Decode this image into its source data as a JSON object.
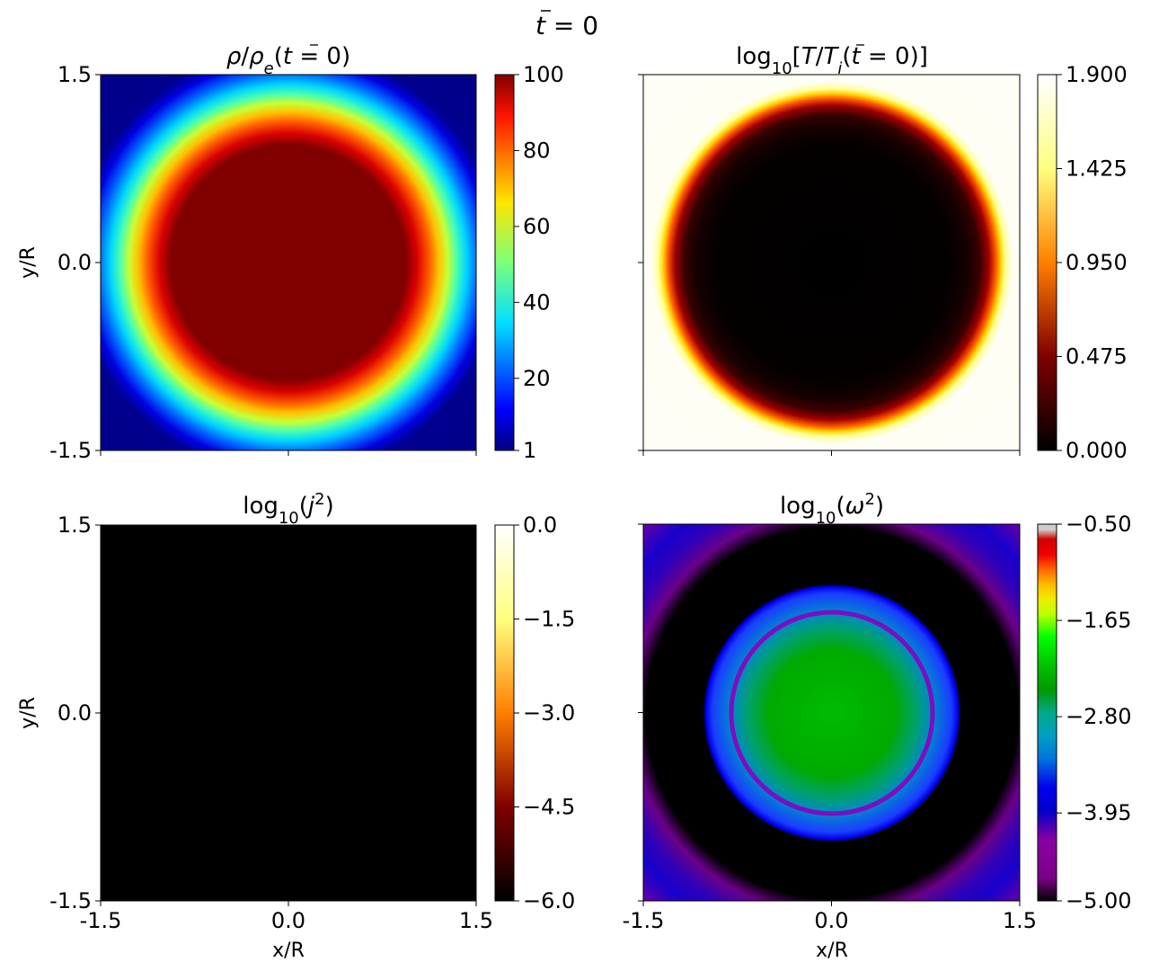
{
  "figure": {
    "suptitle": {
      "t": "t",
      "eq": " = 0"
    }
  },
  "chart_data": [
    {
      "type": "heatmap",
      "title": {
        "a": "ρ",
        "b": "/",
        "c": "ρ",
        "c_sub": "e",
        "d": "(",
        "e": "t",
        "f": " = 0)"
      },
      "xlabel": "",
      "ylabel": "y/R",
      "xlim": [
        -1.5,
        1.5
      ],
      "ylim": [
        -1.5,
        1.5
      ],
      "xticks": [
        -1.5,
        0.0,
        1.5
      ],
      "xtick_labels": [
        "",
        "",
        ""
      ],
      "yticks": [
        -1.5,
        0.0,
        1.5
      ],
      "ytick_labels": [
        "-1.5",
        "0.0",
        "1.5"
      ],
      "colormap": "jet",
      "colorbar": {
        "range": [
          1,
          100
        ],
        "ticks": [
          1,
          20,
          40,
          60,
          80,
          100
        ],
        "tick_labels": [
          "1",
          "20",
          "40",
          "60",
          "80",
          "100"
        ]
      },
      "field": {
        "shape": "radial",
        "center": [
          0,
          0
        ],
        "plateau_value": 100,
        "plateau_radius": 0.7,
        "edge_radius": 1.15,
        "background_value": 1
      }
    },
    {
      "type": "heatmap",
      "title": {
        "log": "log",
        "log_sub": "10",
        "lb": "[",
        "T": "T",
        "sl": "/",
        "Ti": "T",
        "Ti_sub": "i",
        "p": "(",
        "t": "t",
        "eq": " = 0)",
        "rb": "]"
      },
      "xlabel": "",
      "ylabel": "",
      "xlim": [
        -1.5,
        1.5
      ],
      "ylim": [
        -1.5,
        1.5
      ],
      "xticks": [
        -1.5,
        0.0,
        1.5
      ],
      "xtick_labels": [
        "",
        "",
        ""
      ],
      "yticks": [
        -1.5,
        0.0,
        1.5
      ],
      "ytick_labels": [
        "",
        "",
        ""
      ],
      "colormap": "afmhot",
      "colorbar": {
        "range": [
          0.0,
          1.9
        ],
        "ticks": [
          0.0,
          0.475,
          0.95,
          1.425,
          1.9
        ],
        "tick_labels": [
          "0.000",
          "0.475",
          "0.950",
          "1.425",
          "1.900"
        ]
      },
      "field": {
        "shape": "radial",
        "center": [
          0,
          0
        ],
        "core_value": 0.0,
        "core_radius": 0.9,
        "edge_radius": 1.27,
        "background_value": 1.9
      }
    },
    {
      "type": "heatmap",
      "title": {
        "log": "log",
        "log_sub": "10",
        "p": "(",
        "j": "j",
        "sup": "2",
        "q": ")"
      },
      "xlabel": "x/R",
      "ylabel": "y/R",
      "xlim": [
        -1.5,
        1.5
      ],
      "ylim": [
        -1.5,
        1.5
      ],
      "xticks": [
        -1.5,
        0.0,
        1.5
      ],
      "xtick_labels": [
        "-1.5",
        "0.0",
        "1.5"
      ],
      "yticks": [
        -1.5,
        0.0,
        1.5
      ],
      "ytick_labels": [
        "-1.5",
        "0.0",
        "1.5"
      ],
      "colormap": "afmhot",
      "colorbar": {
        "range": [
          -6.0,
          0.0
        ],
        "ticks": [
          -6.0,
          -4.5,
          -3.0,
          -1.5,
          0.0
        ],
        "tick_labels": [
          "−6.0",
          "−4.5",
          "−3.0",
          "−1.5",
          "0.0"
        ]
      },
      "field": {
        "shape": "uniform",
        "value": -6.0
      }
    },
    {
      "type": "heatmap",
      "title": {
        "log": "log",
        "log_sub": "10",
        "p": "(",
        "w": "ω",
        "sup": "2",
        "q": ")"
      },
      "xlabel": "x/R",
      "ylabel": "",
      "xlim": [
        -1.5,
        1.5
      ],
      "ylim": [
        -1.5,
        1.5
      ],
      "xticks": [
        -1.5,
        0.0,
        1.5
      ],
      "xtick_labels": [
        "-1.5",
        "0.0",
        "1.5"
      ],
      "yticks": [
        -1.5,
        0.0,
        1.5
      ],
      "ytick_labels": [
        "",
        "",
        ""
      ],
      "colormap": "nipy_spectral",
      "colorbar": {
        "range": [
          -5.0,
          -0.5
        ],
        "ticks": [
          -5.0,
          -3.95,
          -2.8,
          -1.65,
          -0.5
        ],
        "tick_labels": [
          "−5.00",
          "−3.95",
          "−2.80",
          "−1.65",
          "−0.50"
        ]
      },
      "field": {
        "shape": "rings",
        "center": [
          0,
          0
        ],
        "rings": [
          {
            "r": 0.0,
            "value": -2.9
          },
          {
            "r": 0.35,
            "value": -3.1
          },
          {
            "r": 0.6,
            "value": -3.9
          },
          {
            "r": 0.75,
            "value": -4.3
          },
          {
            "r": 0.8,
            "value": -5.0
          },
          {
            "r": 1.1,
            "value": -5.0
          },
          {
            "r": 1.2,
            "value": -4.4
          },
          {
            "r": 1.45,
            "value": -4.1
          },
          {
            "r": 1.75,
            "value": -4.6
          },
          {
            "r": 2.05,
            "value": -5.0
          }
        ],
        "thin_ring": {
          "r": 0.77,
          "value": -4.5
        }
      }
    }
  ]
}
